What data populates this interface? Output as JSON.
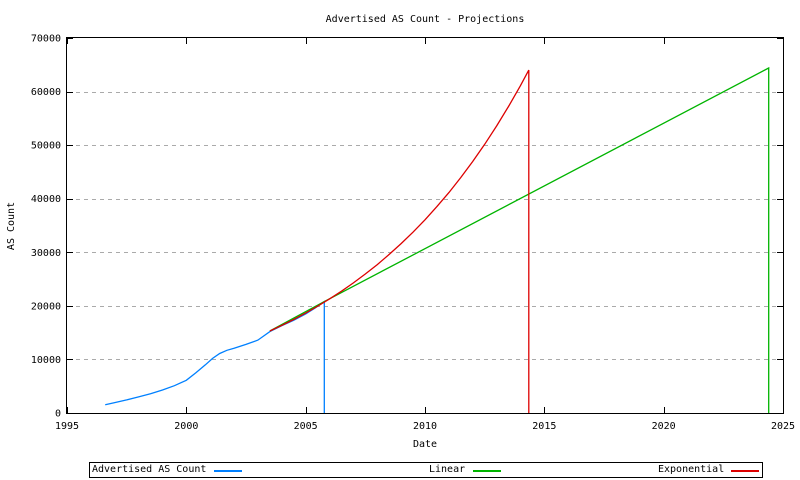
{
  "chart_data": {
    "type": "line",
    "title": "Advertised AS Count - Projections",
    "xlabel": "Date",
    "ylabel": "AS Count",
    "xlim": [
      1995,
      2025
    ],
    "ylim": [
      0,
      70000
    ],
    "xticks": [
      1995,
      2000,
      2005,
      2010,
      2015,
      2020,
      2025
    ],
    "yticks": [
      0,
      10000,
      20000,
      30000,
      40000,
      50000,
      60000,
      70000
    ],
    "grid": "horizontal-dashed",
    "grid_color": "#aaaaaa",
    "axis_color": "#000000",
    "legend_position": "bottom-outside",
    "series": [
      {
        "name": "Advertised AS Count",
        "color": "#0080ff",
        "points": [
          [
            1996.6,
            1550
          ],
          [
            1997.0,
            1950
          ],
          [
            1997.5,
            2450
          ],
          [
            1998.0,
            3000
          ],
          [
            1998.5,
            3600
          ],
          [
            1999.0,
            4300
          ],
          [
            1999.5,
            5100
          ],
          [
            2000.0,
            6100
          ],
          [
            2000.4,
            7500
          ],
          [
            2000.8,
            9000
          ],
          [
            2001.1,
            10200
          ],
          [
            2001.4,
            11100
          ],
          [
            2001.7,
            11700
          ],
          [
            2002.0,
            12100
          ],
          [
            2002.5,
            12800
          ],
          [
            2003.0,
            13600
          ],
          [
            2003.5,
            15200
          ],
          [
            2004.0,
            16300
          ],
          [
            2004.5,
            17300
          ],
          [
            2005.0,
            18500
          ],
          [
            2005.4,
            19600
          ],
          [
            2005.78,
            20800
          ],
          [
            2005.78,
            0
          ]
        ]
      },
      {
        "name": "Linear",
        "color": "#00b400",
        "points": [
          [
            2003.5,
            15300
          ],
          [
            2005.78,
            20800
          ],
          [
            2024.4,
            64400
          ],
          [
            2024.4,
            0
          ]
        ]
      },
      {
        "name": "Exponential",
        "color": "#dd0000",
        "points": [
          [
            2003.5,
            15300
          ],
          [
            2004.0,
            16350
          ],
          [
            2004.5,
            17460
          ],
          [
            2005.0,
            18650
          ],
          [
            2005.5,
            19930
          ],
          [
            2006.0,
            21290
          ],
          [
            2006.5,
            22740
          ],
          [
            2007.0,
            24290
          ],
          [
            2007.5,
            25950
          ],
          [
            2008.0,
            27710
          ],
          [
            2008.5,
            29600
          ],
          [
            2009.0,
            31620
          ],
          [
            2009.5,
            33770
          ],
          [
            2010.0,
            36070
          ],
          [
            2010.5,
            38530
          ],
          [
            2011.0,
            41150
          ],
          [
            2011.5,
            43960
          ],
          [
            2012.0,
            46950
          ],
          [
            2012.5,
            50150
          ],
          [
            2013.0,
            53570
          ],
          [
            2013.5,
            57220
          ],
          [
            2014.0,
            61120
          ],
          [
            2014.35,
            64000
          ],
          [
            2014.35,
            0
          ]
        ]
      }
    ]
  }
}
